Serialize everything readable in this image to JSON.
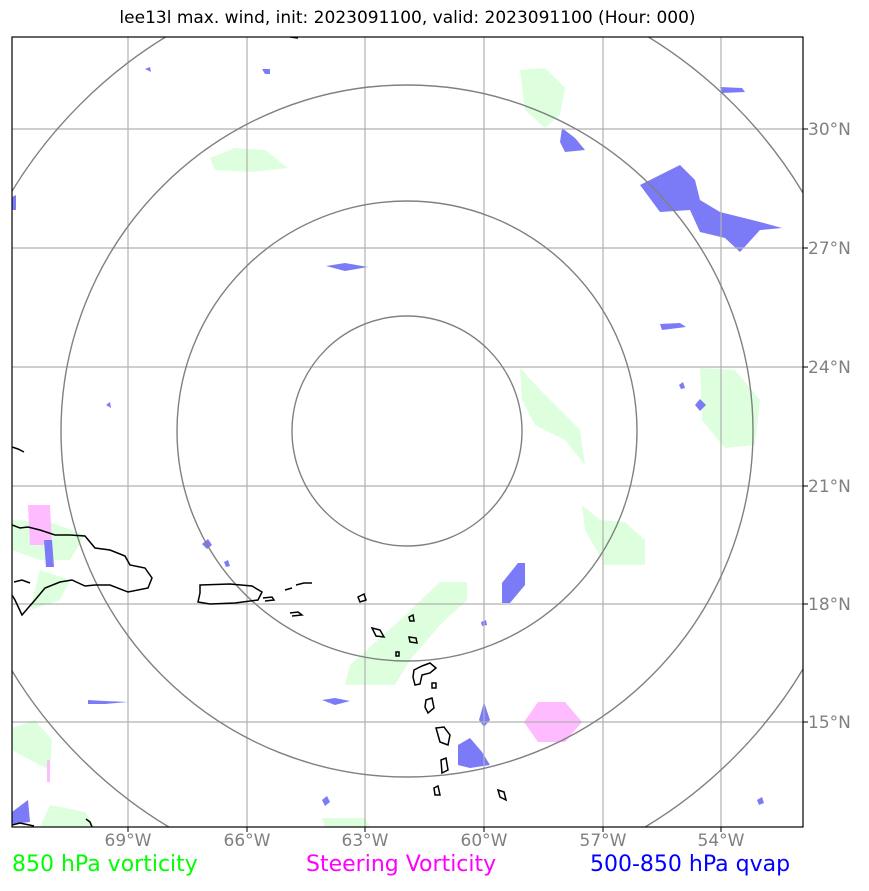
{
  "title": "lee13l max. wind, init: 2023091100, valid: 2023091100 (Hour: 000)",
  "lat_labels": [
    "30°N",
    "27°N",
    "24°N",
    "21°N",
    "18°N",
    "15°N"
  ],
  "lon_labels": [
    "69°W",
    "66°W",
    "63°W",
    "60°W",
    "57°W",
    "54°W"
  ],
  "legend": {
    "vorticity_850": {
      "label": "850 hPa vorticity",
      "color": "#00ff00"
    },
    "steering": {
      "label": "Steering Vorticity",
      "color": "#ff00ff"
    },
    "qvap": {
      "label": "500-850 hPa qvap",
      "color": "#0000ff"
    }
  },
  "colors": {
    "vorticity_fill": "#ddffdd",
    "steering_fill": "#ffbbff",
    "qvap_fill": "#7b7bf7",
    "grid": "#b0b0b0",
    "rings": "#808080",
    "coast": "#000000"
  }
}
